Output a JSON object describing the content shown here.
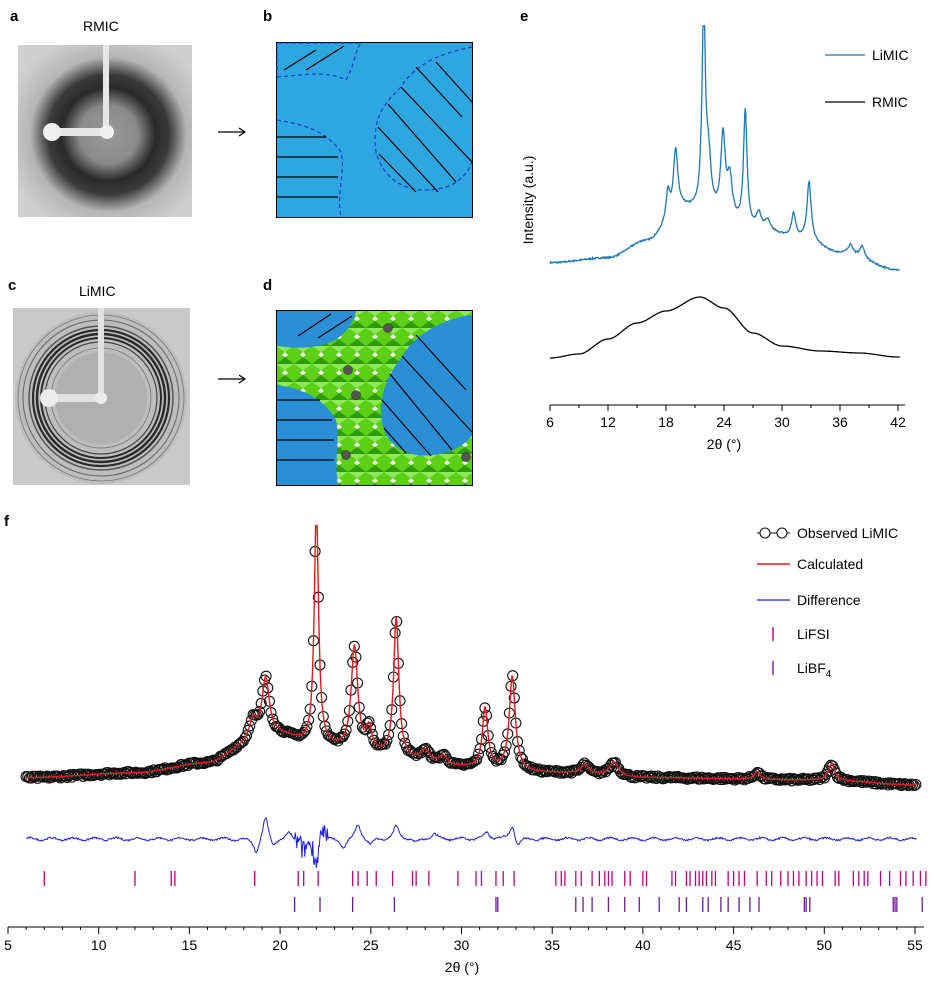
{
  "panels": {
    "a": {
      "letter": "a",
      "title": "RMIC"
    },
    "b": {
      "letter": "b"
    },
    "c": {
      "letter": "c",
      "title": "LiMIC"
    },
    "d": {
      "letter": "d"
    },
    "e": {
      "letter": "e"
    },
    "f": {
      "letter": "f"
    }
  },
  "colors": {
    "limic_line": "#1f78b4",
    "rmic_line": "#000000",
    "domain_blue": "#2ea7e0",
    "crystal_green": "#5bd016",
    "calculated": "#e8161c",
    "difference": "#1e1ee0",
    "lifsi_ticks": "#c0007a",
    "libf4_ticks": "#6a1b9a"
  },
  "chart_data": [
    {
      "id": "panel-e",
      "type": "line",
      "title": "",
      "xlabel": "2θ (°)",
      "ylabel": "Intensity (a.u.)",
      "xlim": [
        6,
        42.5
      ],
      "xticks": [
        6,
        12,
        18,
        24,
        30,
        36,
        42
      ],
      "legend_position": "top-right",
      "series": [
        {
          "name": "LiMIC",
          "color": "#1f78b4",
          "baseline": [
            [
              6,
              0.08
            ],
            [
              12,
              0.1
            ],
            [
              16,
              0.17
            ],
            [
              20,
              0.3
            ],
            [
              23,
              0.27
            ],
            [
              27,
              0.22
            ],
            [
              32,
              0.18
            ],
            [
              36,
              0.12
            ],
            [
              42,
              0.05
            ]
          ],
          "peaks": [
            [
              18.2,
              0.12,
              0.25
            ],
            [
              19.0,
              0.26,
              0.28
            ],
            [
              21.9,
              0.82,
              0.22
            ],
            [
              22.4,
              0.2,
              0.3
            ],
            [
              23.9,
              0.33,
              0.28
            ],
            [
              24.6,
              0.16,
              0.3
            ],
            [
              26.2,
              0.48,
              0.22
            ],
            [
              27.6,
              0.06,
              0.3
            ],
            [
              28.5,
              0.04,
              0.3
            ],
            [
              31.2,
              0.1,
              0.25
            ],
            [
              32.8,
              0.24,
              0.25
            ],
            [
              37.1,
              0.04,
              0.3
            ],
            [
              38.3,
              0.05,
              0.3
            ]
          ]
        },
        {
          "name": "RMIC",
          "color": "#000000",
          "baseline": [
            [
              6,
              0.05
            ],
            [
              9,
              0.09
            ],
            [
              12,
              0.24
            ],
            [
              15,
              0.4
            ],
            [
              18,
              0.52
            ],
            [
              21.5,
              0.66
            ],
            [
              24,
              0.55
            ],
            [
              27,
              0.3
            ],
            [
              30,
              0.17
            ],
            [
              34,
              0.12
            ],
            [
              38,
              0.1
            ],
            [
              42,
              0.06
            ]
          ],
          "peaks": []
        }
      ]
    },
    {
      "id": "panel-f",
      "type": "line",
      "title": "",
      "xlabel": "2θ (°)",
      "ylabel": "",
      "xlim": [
        5,
        55.5
      ],
      "xticks": [
        5,
        10,
        15,
        20,
        25,
        30,
        35,
        40,
        45,
        50,
        55
      ],
      "legend_position": "top-right",
      "legend": [
        "Observed LiMIC",
        "Calculated",
        "Difference",
        "LiFSI",
        "LiBF"
      ],
      "legend_subscript_libf": "4",
      "series": [
        {
          "name": "Observed LiMIC",
          "baseline": [
            [
              6,
              0.03
            ],
            [
              12,
              0.05
            ],
            [
              16,
              0.09
            ],
            [
              18,
              0.15
            ],
            [
              20,
              0.2
            ],
            [
              22,
              0.16
            ],
            [
              25,
              0.12
            ],
            [
              30,
              0.07
            ],
            [
              35,
              0.05
            ],
            [
              40,
              0.03
            ],
            [
              50,
              0.02
            ],
            [
              55,
              0.0
            ]
          ],
          "peaks": [
            [
              18.5,
              0.1,
              0.3
            ],
            [
              19.2,
              0.25,
              0.25
            ],
            [
              22.0,
              1.0,
              0.14
            ],
            [
              24.1,
              0.44,
              0.22
            ],
            [
              24.9,
              0.1,
              0.2
            ],
            [
              26.4,
              0.58,
              0.17
            ],
            [
              28.0,
              0.05,
              0.3
            ],
            [
              29.0,
              0.04,
              0.3
            ],
            [
              31.3,
              0.25,
              0.18
            ],
            [
              32.8,
              0.39,
              0.2
            ],
            [
              36.8,
              0.04,
              0.25
            ],
            [
              38.4,
              0.06,
              0.3
            ],
            [
              46.3,
              0.03,
              0.2
            ],
            [
              50.4,
              0.07,
              0.2
            ]
          ]
        },
        {
          "name": "Calculated",
          "color": "#e8161c"
        },
        {
          "name": "Difference",
          "color": "#1e1ee0",
          "features": [
            [
              18.7,
              -0.35
            ],
            [
              19.2,
              0.55
            ],
            [
              19.6,
              -0.2
            ],
            [
              20.5,
              0.15
            ],
            [
              21.3,
              -0.25
            ],
            [
              22.0,
              -0.6
            ],
            [
              22.3,
              0.3
            ],
            [
              23.5,
              -0.2
            ],
            [
              24.3,
              0.35
            ],
            [
              25.0,
              -0.15
            ],
            [
              26.4,
              0.3
            ],
            [
              27.5,
              -0.1
            ],
            [
              28.5,
              0.12
            ],
            [
              31.4,
              0.15
            ],
            [
              32.8,
              0.35
            ],
            [
              33.1,
              -0.2
            ]
          ]
        }
      ],
      "lifsi_positions": [
        7.0,
        12.0,
        14.0,
        14.2,
        18.6,
        21.0,
        21.3,
        22.1,
        24.0,
        24.3,
        24.8,
        25.3,
        26.2,
        27.3,
        27.5,
        28.2,
        29.8,
        30.8,
        31.1,
        31.9,
        32.3,
        32.9,
        35.2,
        35.5,
        35.7,
        36.3,
        36.6,
        37.2,
        37.6,
        37.9,
        38.1,
        38.3,
        39.0,
        39.3,
        40.0,
        40.2,
        41.6,
        41.8,
        42.4,
        42.6,
        42.9,
        43.1,
        43.3,
        43.5,
        43.8,
        44.0,
        44.7,
        45.0,
        45.3,
        45.6,
        46.3,
        46.8,
        47.1,
        47.6,
        48.0,
        48.3,
        48.6,
        49.0,
        49.3,
        49.6,
        49.9,
        50.6,
        50.8,
        51.6,
        51.9,
        52.2,
        52.4,
        53.1,
        53.6,
        54.2,
        54.5,
        54.9,
        55.3,
        55.6
      ],
      "libf4_positions": [
        20.8,
        22.2,
        24.0,
        26.3,
        31.9,
        32.0,
        36.3,
        36.7,
        37.2,
        38.1,
        39.0,
        39.8,
        40.9,
        42.0,
        42.4,
        43.3,
        43.6,
        44.3,
        44.7,
        45.3,
        45.9,
        46.4,
        48.9,
        49.0,
        49.2,
        53.8,
        53.9,
        54.0,
        55.4
      ]
    }
  ]
}
